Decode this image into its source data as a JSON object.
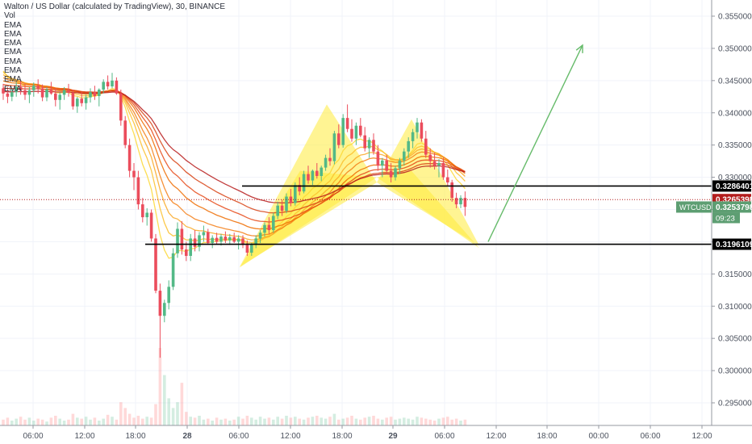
{
  "legend": {
    "title": "Walton / US Dollar (calculated by TradingView), 30, BINANCE",
    "vol": "Vol",
    "ema": [
      "EMA",
      "EMA",
      "EMA",
      "EMA",
      "EMA",
      "EMA",
      "EMA",
      "EMA"
    ]
  },
  "chart_data": {
    "type": "candlestick",
    "symbol": "WTCUSD",
    "interval": "30",
    "exchange": "BINANCE",
    "ylim": [
      0.2925,
      0.3575
    ],
    "y_ticks": [
      0.295,
      0.3,
      0.305,
      0.31,
      0.315,
      0.32,
      0.325,
      0.33,
      0.335,
      0.34,
      0.345,
      0.35,
      0.355
    ],
    "x_ticks": [
      "06:00",
      "12:00",
      "18:00",
      "28",
      "06:00",
      "12:00",
      "18:00",
      "29",
      "06:00",
      "12:00",
      "18:00",
      "00:00",
      "06:00",
      "12:00"
    ],
    "price_labels": [
      {
        "value": "0.3286401",
        "color": "#000000",
        "y": 0.32864
      },
      {
        "value": "0.3265398",
        "color": "#b31d1d",
        "y": 0.32654
      },
      {
        "value": "0.3253798",
        "color": "#5d9e72",
        "y": 0.32538,
        "symbol": "WTCUSD",
        "countdown": "09:23"
      },
      {
        "value": "0.3196109",
        "color": "#000000",
        "y": 0.31961
      }
    ],
    "horizontal_lines": [
      0.32864,
      0.31961
    ],
    "pattern_points": [
      [
        0.3161,
        0.3413,
        0.3292,
        0.339,
        0.3194
      ],
      [
        0.316,
        0.331,
        0.33,
        0.331,
        0.319
      ]
    ],
    "projection_arrow": {
      "from": 0.32,
      "to": 0.3505
    },
    "candles": [
      [
        0.3438,
        0.3445,
        0.342,
        0.343
      ],
      [
        0.343,
        0.344,
        0.3415,
        0.3425
      ],
      [
        0.3425,
        0.3438,
        0.3418,
        0.3432
      ],
      [
        0.3432,
        0.3448,
        0.3425,
        0.344
      ],
      [
        0.344,
        0.345,
        0.3428,
        0.3435
      ],
      [
        0.3435,
        0.3445,
        0.342,
        0.3428
      ],
      [
        0.3428,
        0.344,
        0.3415,
        0.3435
      ],
      [
        0.3435,
        0.3447,
        0.3425,
        0.3442
      ],
      [
        0.3442,
        0.3452,
        0.343,
        0.3438
      ],
      [
        0.3438,
        0.3444,
        0.3418,
        0.3424
      ],
      [
        0.3424,
        0.344,
        0.3418,
        0.3436
      ],
      [
        0.3436,
        0.3448,
        0.3428,
        0.343
      ],
      [
        0.343,
        0.3438,
        0.341,
        0.342
      ],
      [
        0.342,
        0.3432,
        0.3405,
        0.3428
      ],
      [
        0.3428,
        0.344,
        0.342,
        0.3435
      ],
      [
        0.3435,
        0.3445,
        0.3425,
        0.3431
      ],
      [
        0.3431,
        0.3436,
        0.3405,
        0.341
      ],
      [
        0.341,
        0.3425,
        0.34,
        0.3422
      ],
      [
        0.3422,
        0.3432,
        0.341,
        0.3415
      ],
      [
        0.3415,
        0.3428,
        0.3405,
        0.3424
      ],
      [
        0.3424,
        0.3438,
        0.3416,
        0.3432
      ],
      [
        0.3432,
        0.3442,
        0.342,
        0.3426
      ],
      [
        0.3426,
        0.3438,
        0.341,
        0.3436
      ],
      [
        0.3436,
        0.3452,
        0.343,
        0.3448
      ],
      [
        0.3448,
        0.3458,
        0.3436,
        0.3441
      ],
      [
        0.3441,
        0.3462,
        0.3438,
        0.345
      ],
      [
        0.345,
        0.3455,
        0.3428,
        0.343
      ],
      [
        0.343,
        0.3436,
        0.338,
        0.3388
      ],
      [
        0.3388,
        0.3395,
        0.3345,
        0.335
      ],
      [
        0.335,
        0.336,
        0.33,
        0.331
      ],
      [
        0.331,
        0.3322,
        0.328,
        0.33
      ],
      [
        0.33,
        0.331,
        0.325,
        0.3258
      ],
      [
        0.3258,
        0.3268,
        0.323,
        0.3238
      ],
      [
        0.3238,
        0.3252,
        0.3225,
        0.3245
      ],
      [
        0.3245,
        0.325,
        0.32,
        0.3205
      ],
      [
        0.3205,
        0.3212,
        0.312,
        0.3124
      ],
      [
        0.3124,
        0.3135,
        0.302,
        0.3085
      ],
      [
        0.3085,
        0.311,
        0.3075,
        0.3105
      ],
      [
        0.3105,
        0.314,
        0.3095,
        0.313
      ],
      [
        0.313,
        0.319,
        0.3125,
        0.3182
      ],
      [
        0.3182,
        0.323,
        0.3175,
        0.322
      ],
      [
        0.322,
        0.3232,
        0.318,
        0.3188
      ],
      [
        0.3188,
        0.32,
        0.317,
        0.3178
      ],
      [
        0.3178,
        0.3212,
        0.317,
        0.3205
      ],
      [
        0.3205,
        0.3218,
        0.3185,
        0.3192
      ],
      [
        0.3192,
        0.3215,
        0.3185,
        0.321
      ],
      [
        0.321,
        0.3225,
        0.32,
        0.3215
      ],
      [
        0.3215,
        0.322,
        0.3195,
        0.3198
      ],
      [
        0.3198,
        0.321,
        0.319,
        0.3206
      ],
      [
        0.3206,
        0.3214,
        0.3196,
        0.32
      ],
      [
        0.32,
        0.3212,
        0.3194,
        0.3208
      ],
      [
        0.3208,
        0.3216,
        0.3198,
        0.3202
      ],
      [
        0.3202,
        0.3212,
        0.3195,
        0.3207
      ],
      [
        0.3207,
        0.3214,
        0.3198,
        0.32
      ],
      [
        0.32,
        0.321,
        0.3188,
        0.3205
      ],
      [
        0.3205,
        0.321,
        0.319,
        0.3195
      ],
      [
        0.3195,
        0.3202,
        0.3178,
        0.3183
      ],
      [
        0.3183,
        0.3198,
        0.3178,
        0.3195
      ],
      [
        0.3195,
        0.321,
        0.319,
        0.3205
      ],
      [
        0.3205,
        0.3218,
        0.3198,
        0.3214
      ],
      [
        0.3214,
        0.323,
        0.3208,
        0.3226
      ],
      [
        0.3226,
        0.3238,
        0.3212,
        0.3218
      ],
      [
        0.3218,
        0.3245,
        0.3214,
        0.324
      ],
      [
        0.324,
        0.3262,
        0.3235,
        0.3256
      ],
      [
        0.3256,
        0.3265,
        0.324,
        0.3248
      ],
      [
        0.3248,
        0.3275,
        0.3244,
        0.327
      ],
      [
        0.327,
        0.3282,
        0.3255,
        0.326
      ],
      [
        0.326,
        0.3292,
        0.3256,
        0.3288
      ],
      [
        0.3288,
        0.33,
        0.3272,
        0.3278
      ],
      [
        0.3278,
        0.331,
        0.3275,
        0.3305
      ],
      [
        0.3305,
        0.3318,
        0.329,
        0.3295
      ],
      [
        0.3295,
        0.3312,
        0.3288,
        0.331
      ],
      [
        0.331,
        0.3322,
        0.3298,
        0.3302
      ],
      [
        0.3302,
        0.3318,
        0.3294,
        0.3315
      ],
      [
        0.3315,
        0.3335,
        0.331,
        0.333
      ],
      [
        0.333,
        0.3345,
        0.3318,
        0.3325
      ],
      [
        0.3325,
        0.3372,
        0.332,
        0.3368
      ],
      [
        0.3368,
        0.3382,
        0.3345,
        0.335
      ],
      [
        0.335,
        0.3398,
        0.3346,
        0.3392
      ],
      [
        0.3392,
        0.3413,
        0.337,
        0.3375
      ],
      [
        0.3375,
        0.339,
        0.3355,
        0.336
      ],
      [
        0.336,
        0.3385,
        0.335,
        0.338
      ],
      [
        0.338,
        0.3392,
        0.3362,
        0.3365
      ],
      [
        0.3365,
        0.3378,
        0.334,
        0.3345
      ],
      [
        0.3345,
        0.3362,
        0.333,
        0.3358
      ],
      [
        0.3358,
        0.3368,
        0.3335,
        0.334
      ],
      [
        0.334,
        0.335,
        0.331,
        0.3318
      ],
      [
        0.3318,
        0.333,
        0.33,
        0.3326
      ],
      [
        0.3326,
        0.3335,
        0.3305,
        0.331
      ],
      [
        0.331,
        0.3322,
        0.3292,
        0.33
      ],
      [
        0.33,
        0.3318,
        0.3295,
        0.3314
      ],
      [
        0.3314,
        0.333,
        0.3305,
        0.3326
      ],
      [
        0.3326,
        0.3345,
        0.3318,
        0.334
      ],
      [
        0.334,
        0.3362,
        0.333,
        0.3356
      ],
      [
        0.3356,
        0.3375,
        0.3345,
        0.337
      ],
      [
        0.337,
        0.3392,
        0.336,
        0.3385
      ],
      [
        0.3385,
        0.339,
        0.3355,
        0.336
      ],
      [
        0.336,
        0.3372,
        0.333,
        0.3335
      ],
      [
        0.3335,
        0.3345,
        0.3315,
        0.3325
      ],
      [
        0.3325,
        0.3338,
        0.3312,
        0.3318
      ],
      [
        0.3318,
        0.3328,
        0.33,
        0.3322
      ],
      [
        0.3322,
        0.333,
        0.3296,
        0.33
      ],
      [
        0.33,
        0.3312,
        0.3286,
        0.3292
      ],
      [
        0.3292,
        0.3296,
        0.3262,
        0.3268
      ],
      [
        0.3268,
        0.3276,
        0.3252,
        0.3258
      ],
      [
        0.3258,
        0.3272,
        0.3252,
        0.3268
      ],
      [
        0.3268,
        0.3278,
        0.324,
        0.3254
      ]
    ],
    "volumes": [
      6,
      8,
      5,
      7,
      9,
      6,
      8,
      5,
      7,
      6,
      4,
      8,
      10,
      7,
      5,
      6,
      12,
      8,
      7,
      9,
      6,
      8,
      5,
      7,
      11,
      9,
      6,
      24,
      18,
      12,
      8,
      10,
      7,
      9,
      8,
      22,
      80,
      52,
      28,
      18,
      24,
      44,
      14,
      9,
      8,
      10,
      6,
      7,
      5,
      8,
      6,
      7,
      5,
      6,
      9,
      7,
      10,
      8,
      6,
      9,
      7,
      8,
      6,
      9,
      7,
      10,
      8,
      9,
      7,
      6,
      8,
      9,
      10,
      8,
      7,
      9,
      12,
      6,
      7,
      8,
      10,
      7,
      6,
      8,
      9,
      10,
      7,
      6,
      8,
      9,
      6,
      7,
      8,
      7,
      6,
      9,
      8,
      7,
      6,
      5,
      7,
      8,
      9,
      6,
      7,
      5,
      6
    ]
  }
}
